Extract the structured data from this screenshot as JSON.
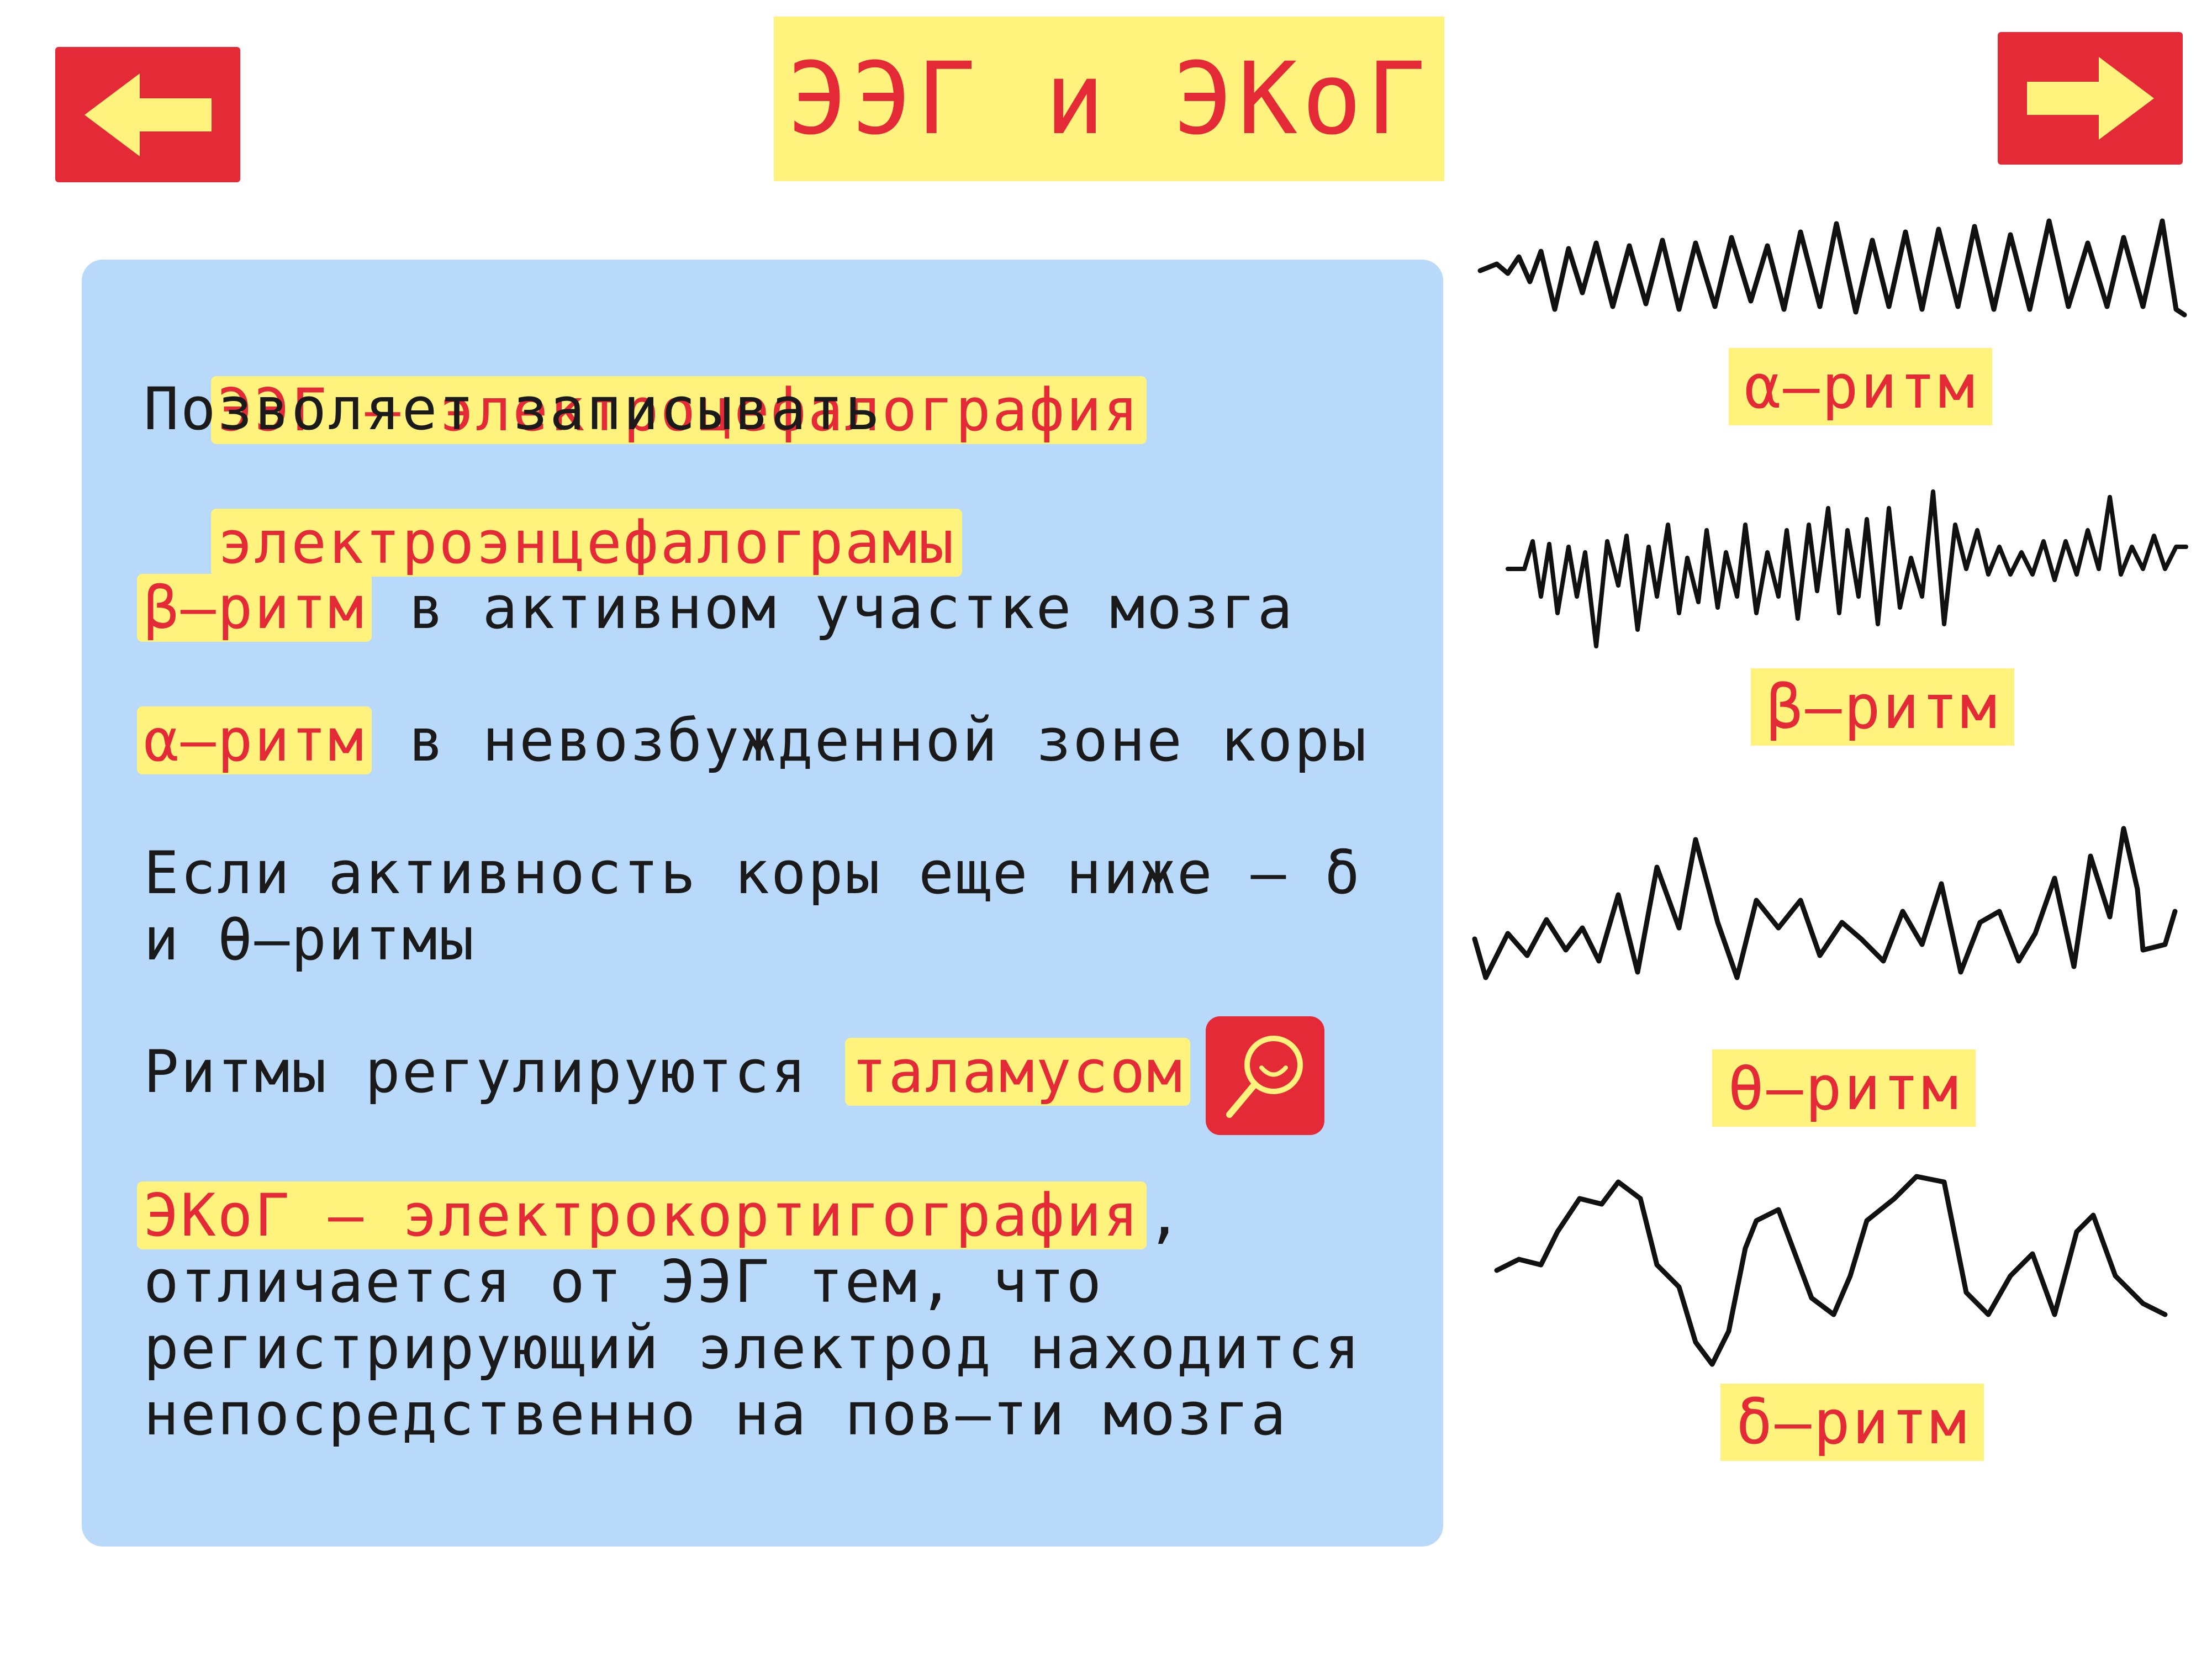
{
  "header": {
    "title": "ЭЭГ и ЭКоГ",
    "prev_icon": "arrow-left-icon",
    "next_icon": "arrow-right-icon"
  },
  "colors": {
    "accent_red": "#e32a36",
    "highlight_yellow": "#fff37e",
    "panel_blue": "#b9d9fb",
    "text": "#1a1a1a"
  },
  "content": {
    "eeg_term": "ЭЭГ – электроцефалография",
    "eeg_desc_1": "Позволяет записывать",
    "eeg_desc_2": "электроэнцефалограмы",
    "beta_term": "β–ритм",
    "beta_rest": " в активном участке мозга",
    "alpha_term": "α–ритм",
    "alpha_rest": " в невозбужденной зоне коры",
    "low_1": "Если активность коры еще ниже – δ",
    "low_2": "и θ–ритмы",
    "thalamus_prefix": "Ритмы регулируются ",
    "thalamus_term": "таламусом",
    "magnifier_icon": "magnifier-icon",
    "ecog_term": "ЭКоГ – электрокортигография",
    "ecog_comma": ",",
    "ecog_desc_1": "отличается от ЭЭГ тем, что",
    "ecog_desc_2": "регистрирующий электрод находится",
    "ecog_desc_3": "непосредственно на пов–ти мозга"
  },
  "rhythms": {
    "alpha": "α–ритм",
    "beta": "β–ритм",
    "theta": "θ–ритм",
    "delta": "δ–ритм"
  }
}
